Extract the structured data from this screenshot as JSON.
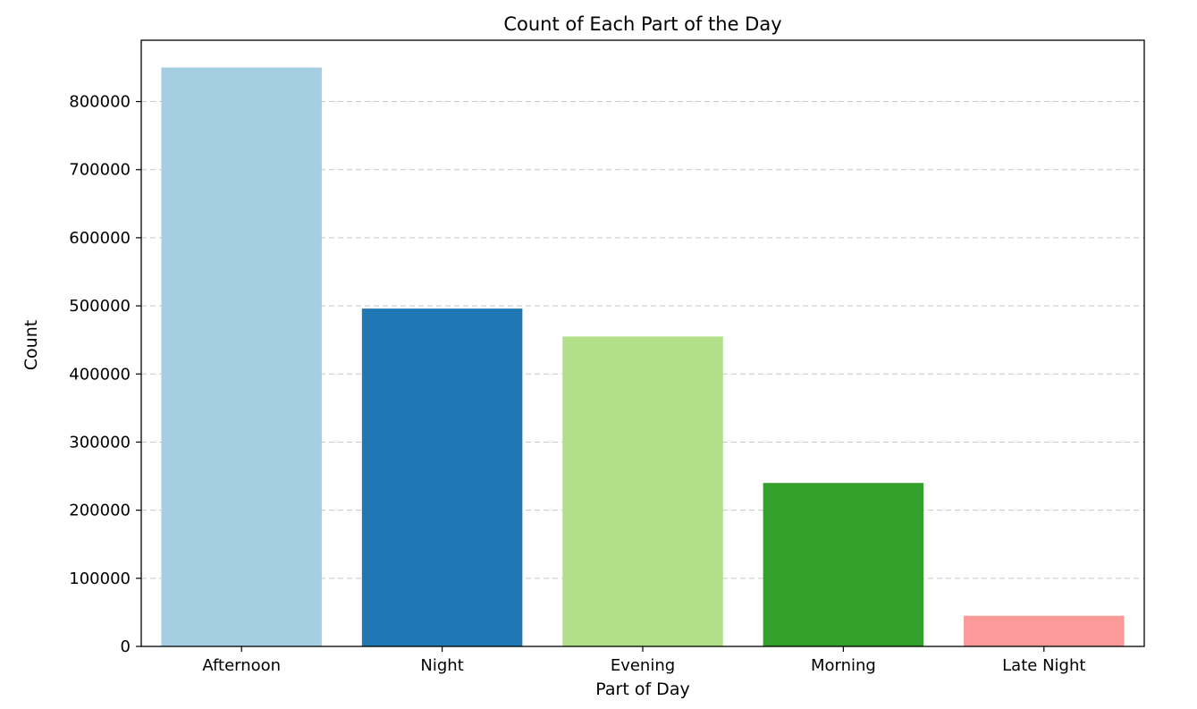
{
  "chart_data": {
    "type": "bar",
    "title": "Count of Each Part of the Day",
    "xlabel": "Part of Day",
    "ylabel": "Count",
    "categories": [
      "Afternoon",
      "Night",
      "Evening",
      "Morning",
      "Late Night"
    ],
    "values": [
      850000,
      496000,
      455000,
      240000,
      45000
    ],
    "colors": [
      "#a6cee3",
      "#1f78b4",
      "#b2df8a",
      "#33a02c",
      "#fb9a99"
    ],
    "ylim": [
      0,
      890000
    ],
    "yticks": [
      0,
      100000,
      200000,
      300000,
      400000,
      500000,
      600000,
      700000,
      800000
    ],
    "ytick_labels": [
      "0",
      "100000",
      "200000",
      "300000",
      "400000",
      "500000",
      "600000",
      "700000",
      "800000"
    ],
    "grid": "y-dashed",
    "legend": "none"
  }
}
